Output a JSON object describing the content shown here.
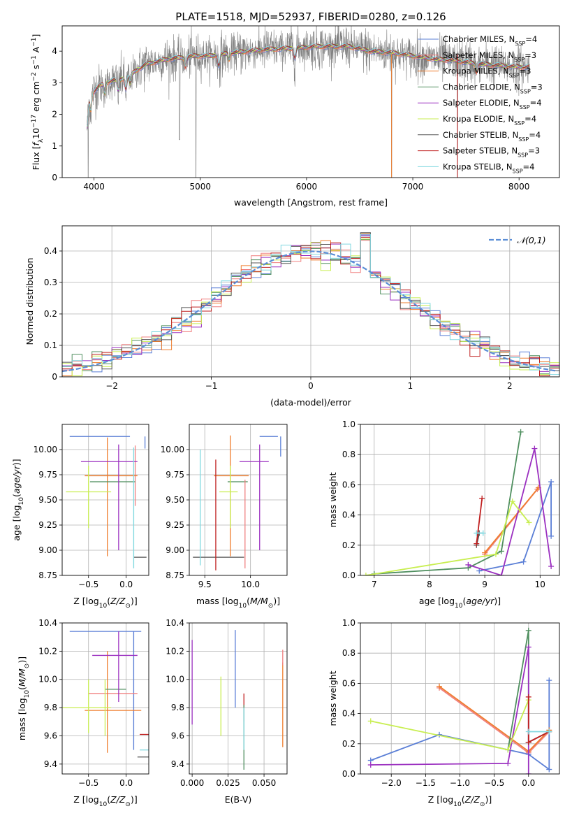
{
  "figure": {
    "title": "PLATE=1518, MJD=52937, FIBERID=0280, z=0.126"
  },
  "colors": {
    "Chabrier MILES": "#5b7fd6",
    "Salpeter MILES": "#f08080",
    "Kroupa MILES": "#ef7d2d",
    "Chabrier ELODIE": "#4f8f5f",
    "Salpeter ELODIE": "#9b30c0",
    "Kroupa ELODIE": "#c8ee50",
    "Chabrier STELIB": "#555555",
    "Salpeter STELIB": "#c02020",
    "Kroupa STELIB": "#80d8e0",
    "normal": "#5b8ed6",
    "data": "#808080"
  },
  "chart_data": [
    {
      "id": "spectrum",
      "type": "line",
      "title": "PLATE=1518, MJD=52937, FIBERID=0280, z=0.126",
      "xlabel": "wavelength [Angstrom, rest frame]",
      "ylabel": "Flux [f_λ10^-17 erg cm^-2 s^-1 A^-1]",
      "xlim": [
        3700,
        8380
      ],
      "ylim": [
        0,
        4.8
      ],
      "xticks": [
        4000,
        5000,
        6000,
        7000,
        8000
      ],
      "yticks": [
        0,
        1,
        2,
        3,
        4
      ],
      "legend_position": "top-right",
      "legend": [
        {
          "name": "Chabrier MILES",
          "nssp": "4"
        },
        {
          "name": "Salpeter MILES",
          "nssp": "3"
        },
        {
          "name": "Kroupa MILES",
          "nssp": "3"
        },
        {
          "name": "Chabrier ELODIE",
          "nssp": "3"
        },
        {
          "name": "Salpeter ELODIE",
          "nssp": "4"
        },
        {
          "name": "Kroupa ELODIE",
          "nssp": "4"
        },
        {
          "name": "Chabrier STELIB",
          "nssp": "4"
        },
        {
          "name": "Salpeter STELIB",
          "nssp": "3"
        },
        {
          "name": "Kroupa STELIB",
          "nssp": "4"
        }
      ],
      "continuum": [
        [
          3930,
          2.1
        ],
        [
          3960,
          2.6
        ],
        [
          4050,
          2.9
        ],
        [
          4150,
          3.05
        ],
        [
          4300,
          3.15
        ],
        [
          4400,
          3.4
        ],
        [
          4500,
          3.6
        ],
        [
          4700,
          3.75
        ],
        [
          4850,
          3.8
        ],
        [
          4950,
          3.85
        ],
        [
          5100,
          3.85
        ],
        [
          5300,
          3.95
        ],
        [
          5600,
          4.05
        ],
        [
          5900,
          4.1
        ],
        [
          6100,
          4.15
        ],
        [
          6400,
          4.15
        ],
        [
          6600,
          4.0
        ],
        [
          6800,
          3.95
        ],
        [
          7000,
          3.85
        ],
        [
          7200,
          3.75
        ],
        [
          7400,
          3.7
        ],
        [
          7600,
          3.6
        ],
        [
          7800,
          3.55
        ],
        [
          8000,
          3.5
        ],
        [
          8100,
          3.5
        ]
      ],
      "absorption_features": [
        [
          3934,
          0.6
        ],
        [
          3969,
          0.5
        ],
        [
          4102,
          0.3
        ],
        [
          4227,
          0.35
        ],
        [
          4300,
          0.35
        ],
        [
          4340,
          0.3
        ],
        [
          4861,
          0.3
        ],
        [
          5175,
          0.35
        ],
        [
          5270,
          0.2
        ],
        [
          5890,
          0.3
        ],
        [
          7600,
          0.25
        ]
      ],
      "data_spikes": [
        [
          3945,
          0
        ],
        [
          4960,
          0
        ],
        [
          6800,
          0
        ],
        [
          7420,
          0
        ]
      ]
    },
    {
      "id": "residuals",
      "type": "step",
      "xlabel": "(data-model)/error",
      "ylabel": "Normed distribution",
      "xlim": [
        -2.5,
        2.5
      ],
      "ylim": [
        0,
        0.48
      ],
      "xticks": [
        -2,
        -1,
        0,
        1,
        2
      ],
      "yticks": [
        0,
        0.1,
        0.2,
        0.3,
        0.4
      ],
      "legend_position": "top-right",
      "legend": [
        "𝒩(0,1)"
      ],
      "bin_width": 0.1,
      "normal_curve": {
        "mean": 0,
        "sigma": 1
      }
    },
    {
      "id": "age_vs_Z",
      "type": "errorbar",
      "xlabel": "Z [log10(Z/Z☉)]",
      "ylabel": "age  [log10(age/yr)]",
      "xlim": [
        -0.85,
        0.3
      ],
      "ylim": [
        8.75,
        10.25
      ],
      "xticks": [
        -0.5,
        0.0
      ],
      "yticks": [
        8.75,
        9.0,
        9.25,
        9.5,
        9.75,
        10.0
      ],
      "points": [
        {
          "series": "Chabrier MILES",
          "x": -0.15,
          "xerr": [
            0.6,
            0.2
          ],
          "y": 10.13,
          "yerr": [
            0.0,
            0.0
          ]
        },
        {
          "series": "Chabrier MILES",
          "x": 0.25,
          "xerr": [
            0,
            0
          ],
          "y": 10.13,
          "yerr": [
            0.12,
            0.0
          ]
        },
        {
          "series": "Salpeter MILES",
          "x": 0.12,
          "xerr": [
            0,
            0
          ],
          "y": 9.74,
          "yerr": [
            0.3,
            0.3
          ]
        },
        {
          "series": "Kroupa MILES",
          "x": -0.25,
          "xerr": [
            0.3,
            0.4
          ],
          "y": 9.74,
          "yerr": [
            0.8,
            0.38
          ]
        },
        {
          "series": "Chabrier ELODIE",
          "x": -0.08,
          "xerr": [
            0.4,
            0.2
          ],
          "y": 9.68,
          "yerr": [
            0,
            0
          ]
        },
        {
          "series": "Salpeter ELODIE",
          "x": -0.1,
          "xerr": [
            0.5,
            0.25
          ],
          "y": 9.88,
          "yerr": [
            0.88,
            0.17
          ]
        },
        {
          "series": "Kroupa ELODIE",
          "x": -0.5,
          "xerr": [
            0.3,
            0.3
          ],
          "y": 9.58,
          "yerr": [
            0.36,
            0.26
          ]
        },
        {
          "series": "Chabrier STELIB",
          "x": 0.12,
          "xerr": [
            0.02,
            0.15
          ],
          "y": 8.93,
          "yerr": [
            0,
            0
          ]
        },
        {
          "series": "Salpeter STELIB",
          "x": 0.07,
          "xerr": [
            0,
            0
          ],
          "y": 9.9,
          "yerr": [
            0,
            0
          ]
        },
        {
          "series": "Kroupa STELIB",
          "x": 0.1,
          "xerr": [
            0,
            0
          ],
          "y": 9.4,
          "yerr": [
            0.58,
            0.62
          ]
        }
      ]
    },
    {
      "id": "age_vs_mass",
      "type": "errorbar",
      "xlabel": "mass [log10(M/M☉)]",
      "ylabel": "",
      "xlim": [
        9.33,
        10.4
      ],
      "ylim": [
        8.75,
        10.25
      ],
      "xticks": [
        9.5,
        10.0
      ],
      "yticks": [
        8.75,
        9.0,
        9.25,
        9.5,
        9.75,
        10.0
      ],
      "points": [
        {
          "series": "Chabrier MILES",
          "x": 10.2,
          "xerr": [
            0.1,
            0.1
          ],
          "y": 10.13,
          "yerr": [
            0,
            0
          ]
        },
        {
          "series": "Chabrier MILES",
          "x": 10.33,
          "xerr": [
            0,
            0
          ],
          "y": 10.13,
          "yerr": [
            0.2,
            0.0
          ]
        },
        {
          "series": "Kroupa MILES",
          "x": 9.78,
          "xerr": [
            0.18,
            0.2
          ],
          "y": 9.74,
          "yerr": [
            0.8,
            0.4
          ]
        },
        {
          "series": "Chabrier ELODIE",
          "x": 9.85,
          "xerr": [
            0.1,
            0.12
          ],
          "y": 9.68,
          "yerr": [
            0,
            0
          ]
        },
        {
          "series": "Salpeter ELODIE",
          "x": 10.1,
          "xerr": [
            0.22,
            0.1
          ],
          "y": 9.88,
          "yerr": [
            0.88,
            0.17
          ]
        },
        {
          "series": "Kroupa ELODIE",
          "x": 9.78,
          "xerr": [
            0.12,
            0.08
          ],
          "y": 9.58,
          "yerr": [
            0.36,
            0.26
          ]
        },
        {
          "series": "Chabrier STELIB",
          "x": 9.6,
          "xerr": [
            0.23,
            0.33
          ],
          "y": 8.93,
          "yerr": [
            0,
            0
          ]
        },
        {
          "series": "Salpeter STELIB",
          "x": 9.62,
          "xerr": [
            0,
            0
          ],
          "y": 9.4,
          "yerr": [
            0.6,
            0.5
          ]
        },
        {
          "series": "Salpeter MILES",
          "x": 9.94,
          "xerr": [
            0,
            0
          ],
          "y": 9.4,
          "yerr": [
            0.58,
            0.3
          ]
        },
        {
          "series": "Kroupa STELIB",
          "x": 9.45,
          "xerr": [
            0,
            0
          ],
          "y": 9.45,
          "yerr": [
            0.6,
            0.55
          ]
        }
      ]
    },
    {
      "id": "mass_weight_vs_age",
      "type": "line",
      "xlabel": "age  [log10(age/yr)]",
      "ylabel": "mass weight",
      "xlim": [
        6.75,
        10.35
      ],
      "ylim": [
        0.0,
        1.0
      ],
      "xticks": [
        7,
        8,
        9,
        10
      ],
      "yticks": [
        0.0,
        0.2,
        0.4,
        0.6,
        0.8,
        1.0
      ],
      "series": [
        {
          "name": "Chabrier MILES",
          "x": [
            8.9,
            9.7,
            10.2,
            10.2
          ],
          "y": [
            0.03,
            0.09,
            0.62,
            0.26
          ]
        },
        {
          "name": "Salpeter MILES",
          "x": [
            9.0,
            9.95
          ],
          "y": [
            0.14,
            0.57
          ]
        },
        {
          "name": "Kroupa MILES",
          "x": [
            9.0,
            9.97
          ],
          "y": [
            0.15,
            0.58
          ]
        },
        {
          "name": "Chabrier ELODIE",
          "x": [
            7.0,
            8.7,
            9.3,
            9.65
          ],
          "y": [
            0.01,
            0.05,
            0.16,
            0.95
          ]
        },
        {
          "name": "Salpeter ELODIE",
          "x": [
            8.7,
            9.3,
            9.9,
            10.2
          ],
          "y": [
            0.07,
            0.0,
            0.84,
            0.06
          ]
        },
        {
          "name": "Kroupa ELODIE",
          "x": [
            6.85,
            9.2,
            9.5,
            9.8
          ],
          "y": [
            0.0,
            0.14,
            0.49,
            0.35
          ]
        },
        {
          "name": "Chabrier STELIB",
          "x": [
            8.85,
            8.9
          ],
          "y": [
            0.2,
            0.28
          ]
        },
        {
          "name": "Salpeter STELIB",
          "x": [
            8.85,
            8.95
          ],
          "y": [
            0.21,
            0.51
          ]
        },
        {
          "name": "Kroupa STELIB",
          "x": [
            8.85,
            8.97
          ],
          "y": [
            0.28,
            0.28
          ]
        }
      ]
    },
    {
      "id": "mass_vs_Z",
      "type": "errorbar",
      "xlabel": "Z [log10(Z/Z☉)]",
      "ylabel": "mass [log10(M/M☉)]",
      "xlim": [
        -0.85,
        0.3
      ],
      "ylim": [
        9.33,
        10.4
      ],
      "xticks": [
        -0.5,
        0.0
      ],
      "yticks": [
        9.4,
        9.6,
        9.8,
        10.0,
        10.2,
        10.4
      ],
      "points": [
        {
          "series": "Chabrier MILES",
          "x": -0.15,
          "xerr": [
            0.6,
            0.35
          ],
          "y": 10.34,
          "yerr": [
            0,
            0
          ]
        },
        {
          "series": "Chabrier MILES",
          "x": 0.1,
          "xerr": [
            0,
            0
          ],
          "y": 9.9,
          "yerr": [
            0.4,
            0.44
          ]
        },
        {
          "series": "Salpeter MILES",
          "x": -0.05,
          "xerr": [
            0.45,
            0.2
          ],
          "y": 9.9,
          "yerr": [
            0,
            0
          ]
        },
        {
          "series": "Kroupa MILES",
          "x": -0.25,
          "xerr": [
            0.3,
            0.45
          ],
          "y": 9.78,
          "yerr": [
            0.3,
            0.42
          ]
        },
        {
          "series": "Chabrier ELODIE",
          "x": -0.1,
          "xerr": [
            0.18,
            0.1
          ],
          "y": 9.93,
          "yerr": [
            0,
            0
          ]
        },
        {
          "series": "Salpeter ELODIE",
          "x": -0.1,
          "xerr": [
            0.35,
            0.25
          ],
          "y": 10.17,
          "yerr": [
            0.33,
            0.17
          ]
        },
        {
          "series": "Kroupa ELODIE",
          "x": -0.5,
          "xerr": [
            0.35,
            0.3
          ],
          "y": 9.8,
          "yerr": [
            0.18,
            0.2
          ]
        },
        {
          "series": "Kroupa ELODIE",
          "x": -0.28,
          "xerr": [
            0,
            0
          ],
          "y": 9.8,
          "yerr": [
            0.2,
            0.2
          ]
        },
        {
          "series": "Chabrier STELIB",
          "x": 0.2,
          "xerr": [
            0.05,
            0.1
          ],
          "y": 9.45,
          "yerr": [
            0,
            0
          ]
        },
        {
          "series": "Salpeter STELIB",
          "x": 0.2,
          "xerr": [
            0.02,
            0.1
          ],
          "y": 9.61,
          "yerr": [
            0,
            0
          ]
        },
        {
          "series": "Kroupa STELIB",
          "x": 0.2,
          "xerr": [
            0.02,
            0.1
          ],
          "y": 9.5,
          "yerr": [
            0,
            0
          ]
        }
      ]
    },
    {
      "id": "mass_vs_ebv",
      "type": "errorbar",
      "xlabel": "E(B-V)",
      "ylabel": "",
      "xlim": [
        -0.002,
        0.066
      ],
      "ylim": [
        9.33,
        10.4
      ],
      "xticks": [
        0.0,
        0.025,
        0.05
      ],
      "yticks": [
        9.4,
        9.6,
        9.8,
        10.0,
        10.2,
        10.4
      ],
      "points": [
        {
          "series": "Salpeter ELODIE",
          "x": 0.0,
          "y": 9.98,
          "yerr": [
            0.3,
            0.3
          ]
        },
        {
          "series": "Kroupa ELODIE",
          "x": 0.02,
          "y": 9.8,
          "yerr": [
            0.2,
            0.22
          ]
        },
        {
          "series": "Chabrier MILES",
          "x": 0.03,
          "y": 10.08,
          "yerr": [
            0.28,
            0.27
          ]
        },
        {
          "series": "Salpeter STELIB",
          "x": 0.036,
          "y": 9.8,
          "yerr": [
            0.1,
            0.1
          ]
        },
        {
          "series": "Chabrier ELODIE",
          "x": 0.036,
          "y": 9.55,
          "yerr": [
            0.19,
            0.27
          ]
        },
        {
          "series": "Kroupa STELIB",
          "x": 0.036,
          "y": 9.6,
          "yerr": [
            0.1,
            0.2
          ]
        },
        {
          "series": "Kroupa MILES",
          "x": 0.063,
          "y": 9.82,
          "yerr": [
            0.3,
            0.3
          ]
        },
        {
          "series": "Salpeter MILES",
          "x": 0.063,
          "y": 10.15,
          "yerr": [
            0.05,
            0.06
          ]
        }
      ]
    },
    {
      "id": "mass_weight_vs_Z",
      "type": "line",
      "xlabel": "Z [log10(Z/Z☉)]",
      "ylabel": "mass weight",
      "xlim": [
        -2.45,
        0.45
      ],
      "ylim": [
        0.0,
        1.0
      ],
      "xticks": [
        -2.0,
        -1.5,
        -1.0,
        -0.5,
        0.0
      ],
      "yticks": [
        0.0,
        0.2,
        0.4,
        0.6,
        0.8,
        1.0
      ],
      "series": [
        {
          "name": "Chabrier MILES",
          "x": [
            -2.3,
            -1.3,
            0.0,
            0.3,
            0.3
          ],
          "y": [
            0.09,
            0.26,
            0.13,
            0.03,
            0.62
          ]
        },
        {
          "name": "Salpeter MILES",
          "x": [
            -1.3,
            0.0,
            0.3
          ],
          "y": [
            0.57,
            0.14,
            0.28
          ]
        },
        {
          "name": "Kroupa MILES",
          "x": [
            -1.3,
            0.0,
            0.3
          ],
          "y": [
            0.58,
            0.15,
            0.29
          ]
        },
        {
          "name": "Chabrier ELODIE",
          "x": [
            -0.3,
            0.0,
            0.0
          ],
          "y": [
            0.16,
            0.95,
            0.21
          ]
        },
        {
          "name": "Salpeter ELODIE",
          "x": [
            -2.3,
            -0.3,
            0.0,
            0.0
          ],
          "y": [
            0.06,
            0.07,
            0.84,
            0.0
          ]
        },
        {
          "name": "Kroupa ELODIE",
          "x": [
            -2.3,
            -0.3,
            0.0
          ],
          "y": [
            0.35,
            0.16,
            0.49
          ]
        },
        {
          "name": "Chabrier STELIB",
          "x": [
            0.0,
            0.3
          ],
          "y": [
            0.21,
            0.28
          ]
        },
        {
          "name": "Salpeter STELIB",
          "x": [
            0.0,
            0.0,
            0.3
          ],
          "y": [
            0.51,
            0.21,
            0.28
          ]
        },
        {
          "name": "Kroupa STELIB",
          "x": [
            0.0,
            0.3,
            0.3
          ],
          "y": [
            0.28,
            0.28,
            0.28
          ]
        }
      ]
    }
  ]
}
